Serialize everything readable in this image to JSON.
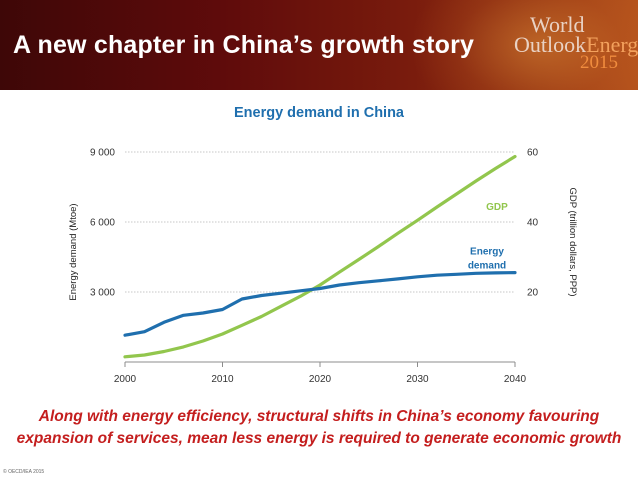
{
  "header": {
    "title": "A new chapter in China’s growth story",
    "logo": {
      "line1": "World",
      "line2a": "Outlook",
      "line2b": "Energy",
      "line3": "2015"
    }
  },
  "colors": {
    "energy": "#1f6fae",
    "gdp": "#92c64d",
    "caption": "#c41e1e",
    "title": "#1f6fae"
  },
  "chart_data": {
    "type": "line",
    "title": "Energy demand in China",
    "xlabel": "",
    "ylabel": "Energy demand (Mtoe)",
    "y2label": "GDP (trillion dollars, PPP)",
    "xlim": [
      2000,
      2040
    ],
    "ylim": [
      0,
      9000
    ],
    "y2lim": [
      0,
      60
    ],
    "xticks": [
      "2000",
      "2010",
      "2020",
      "2030",
      "2040"
    ],
    "yticks": [
      "3 000",
      "6 000",
      "9 000"
    ],
    "y2ticks": [
      "20",
      "40",
      "60"
    ],
    "grid": true,
    "series": [
      {
        "name": "GDP",
        "label": "GDP",
        "axis": "right",
        "x": [
          2000,
          2002,
          2004,
          2006,
          2008,
          2010,
          2012,
          2014,
          2016,
          2018,
          2020,
          2022,
          2024,
          2026,
          2028,
          2030,
          2032,
          2034,
          2036,
          2038,
          2040
        ],
        "values": [
          1.5,
          2.0,
          3.0,
          4.3,
          6.0,
          8.0,
          10.5,
          13.0,
          15.9,
          18.8,
          22.0,
          25.7,
          29.3,
          33.0,
          36.8,
          40.5,
          44.3,
          48.0,
          51.7,
          55.3,
          58.7
        ]
      },
      {
        "name": "Energy demand",
        "label": "Energy demand",
        "axis": "left",
        "x": [
          2000,
          2002,
          2004,
          2006,
          2008,
          2010,
          2012,
          2014,
          2016,
          2018,
          2020,
          2022,
          2024,
          2026,
          2028,
          2030,
          2032,
          2034,
          2036,
          2038,
          2040
        ],
        "values": [
          1150,
          1300,
          1700,
          2000,
          2100,
          2250,
          2700,
          2850,
          2950,
          3050,
          3150,
          3300,
          3400,
          3480,
          3560,
          3650,
          3720,
          3760,
          3800,
          3820,
          3830
        ]
      }
    ]
  },
  "caption": {
    "line1": "Along with energy efficiency, structural shifts in China’s economy favouring",
    "line2": "expansion of services, mean less energy is required to generate economic growth"
  },
  "copyright": "© OECD/IEA 2015"
}
